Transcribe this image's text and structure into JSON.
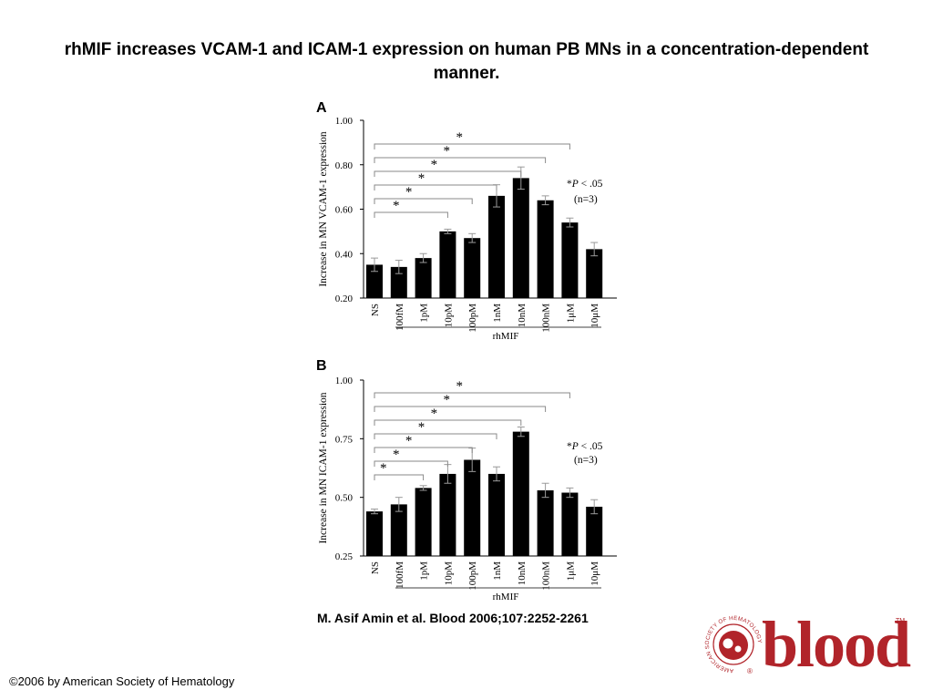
{
  "slide_title": "rhMIF increases VCAM-1 and ICAM-1 expression on human PB MNs in a concentration-dependent manner.",
  "citation": "M. Asif Amin et al. Blood 2006;107:2252-2261",
  "copyright": "©2006 by American Society of Hematology",
  "logo": {
    "word": "blood",
    "ring_text": "AMERICAN SOCIETY OF HEMATOLOGY",
    "tm": "TM",
    "reg": "®",
    "color": "#b1242a"
  },
  "chart_data": [
    {
      "type": "bar",
      "panel": "A",
      "ylabel": "Increase in MN VCAM-1 expression",
      "xlabel": "rhMIF",
      "categories": [
        "NS",
        "100fM",
        "1pM",
        "10pM",
        "100pM",
        "1nM",
        "10nM",
        "100nM",
        "1μM",
        "10μM"
      ],
      "values": [
        0.35,
        0.34,
        0.38,
        0.5,
        0.47,
        0.66,
        0.74,
        0.64,
        0.54,
        0.42
      ],
      "errors": [
        0.03,
        0.03,
        0.02,
        0.01,
        0.02,
        0.05,
        0.05,
        0.02,
        0.02,
        0.03
      ],
      "ylim": [
        0.2,
        1.0
      ],
      "yticks": [
        "0.20",
        "0.40",
        "0.60",
        "0.80",
        "1.00"
      ],
      "significance_brackets": [
        {
          "from": "NS",
          "to": "10pM",
          "label": "*"
        },
        {
          "from": "NS",
          "to": "100pM",
          "label": "*"
        },
        {
          "from": "NS",
          "to": "1nM",
          "label": "*"
        },
        {
          "from": "NS",
          "to": "10nM",
          "label": "*"
        },
        {
          "from": "NS",
          "to": "100nM",
          "label": "*"
        },
        {
          "from": "NS",
          "to": "1μM",
          "label": "*"
        }
      ],
      "note_line1_prefix": "*",
      "note_line1_italic": "P",
      "note_line1_suffix": " < .05",
      "note_line2": "(n=3)"
    },
    {
      "type": "bar",
      "panel": "B",
      "ylabel": "Increase in MN ICAM-1 expression",
      "xlabel": "rhMIF",
      "categories": [
        "NS",
        "100fM",
        "1pM",
        "10pM",
        "100pM",
        "1nM",
        "10nM",
        "100nM",
        "1μM",
        "10μM"
      ],
      "values": [
        0.44,
        0.47,
        0.54,
        0.6,
        0.66,
        0.6,
        0.78,
        0.53,
        0.52,
        0.46
      ],
      "errors": [
        0.01,
        0.03,
        0.01,
        0.04,
        0.05,
        0.03,
        0.02,
        0.03,
        0.02,
        0.03
      ],
      "ylim": [
        0.25,
        1.0
      ],
      "yticks": [
        "0.25",
        "0.50",
        "0.75",
        "1.00"
      ],
      "significance_brackets": [
        {
          "from": "NS",
          "to": "1pM",
          "label": "*"
        },
        {
          "from": "NS",
          "to": "10pM",
          "label": "*"
        },
        {
          "from": "NS",
          "to": "100pM",
          "label": "*"
        },
        {
          "from": "NS",
          "to": "1nM",
          "label": "*"
        },
        {
          "from": "NS",
          "to": "10nM",
          "label": "*"
        },
        {
          "from": "NS",
          "to": "100nM",
          "label": "*"
        },
        {
          "from": "NS",
          "to": "1μM",
          "label": "*"
        }
      ],
      "note_line1_prefix": "*",
      "note_line1_italic": "P",
      "note_line1_suffix": " < .05",
      "note_line2": "(n=3)"
    }
  ]
}
